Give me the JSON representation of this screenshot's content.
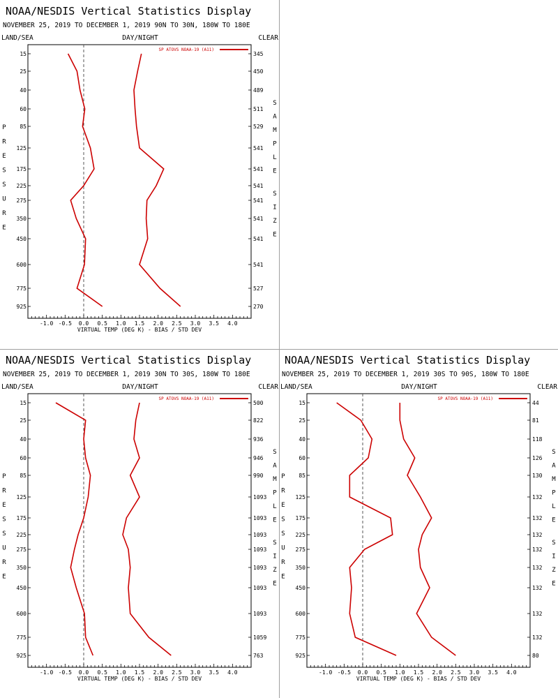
{
  "chart_data": [
    {
      "type": "line",
      "title": "NOAA/NESDIS Vertical Statistics Display",
      "subtitle": "NOVEMBER 25, 2019 TO DECEMBER 1, 2019 90N TO 30N, 180W TO 180E",
      "header_left": "LAND/SEA",
      "header_center": "DAY/NIGHT",
      "header_right": "CLEAR",
      "xlabel": "VIRTUAL TEMP (DEG K) - BIAS / STD DEV",
      "left_axis_label": "PRESSURE",
      "right_axis_label": "SAMPLE SIZE",
      "xlim": [
        -1.5,
        4.5
      ],
      "xticks": [
        "-1.0",
        "-0.5",
        "0.0",
        "0.5",
        "1.0",
        "1.5",
        "2.0",
        "2.5",
        "3.0",
        "3.5",
        "4.0"
      ],
      "pressure_levels": [
        "15",
        "25",
        "40",
        "60",
        "85",
        "125",
        "175",
        "225",
        "275",
        "350",
        "450",
        "600",
        "775",
        "925"
      ],
      "sample_size": [
        "345",
        "450",
        "489",
        "511",
        "529",
        "541",
        "541",
        "541",
        "541",
        "541",
        "541",
        "541",
        "527",
        "270"
      ],
      "series": [
        {
          "name": "SP ATOVS NOAA-19 (A11)",
          "role": "bias",
          "color": "#cc0000",
          "values": [
            -0.42,
            -0.18,
            -0.1,
            0.03,
            -0.03,
            0.18,
            0.28,
            0.0,
            -0.35,
            -0.2,
            0.05,
            0.02,
            -0.18,
            0.5
          ]
        },
        {
          "role": "std_dev",
          "color": "#cc0000",
          "values": [
            1.55,
            1.45,
            1.35,
            1.38,
            1.42,
            1.5,
            2.15,
            1.95,
            1.7,
            1.68,
            1.72,
            1.5,
            2.05,
            2.6
          ]
        }
      ]
    },
    {
      "type": "line",
      "title": "NOAA/NESDIS Vertical Statistics Display",
      "subtitle": "NOVEMBER 25, 2019 TO DECEMBER 1, 2019 30N TO 30S, 180W TO 180E",
      "header_left": "LAND/SEA",
      "header_center": "DAY/NIGHT",
      "header_right": "CLEAR",
      "xlabel": "VIRTUAL TEMP (DEG K) - BIAS / STD DEV",
      "left_axis_label": "PRESSURE",
      "right_axis_label": "SAMPLE SIZE",
      "xlim": [
        -1.5,
        4.5
      ],
      "xticks": [
        "-1.0",
        "-0.5",
        "0.0",
        "0.5",
        "1.0",
        "1.5",
        "2.0",
        "2.5",
        "3.0",
        "3.5",
        "4.0"
      ],
      "pressure_levels": [
        "15",
        "25",
        "40",
        "60",
        "85",
        "125",
        "175",
        "225",
        "275",
        "350",
        "450",
        "600",
        "775",
        "925"
      ],
      "sample_size": [
        "500",
        "822",
        "936",
        "946",
        "990",
        "1093",
        "1093",
        "1093",
        "1093",
        "1093",
        "1093",
        "1093",
        "1059",
        "763"
      ],
      "series": [
        {
          "name": "SP ATOVS NOAA-19 (A11)",
          "role": "bias",
          "color": "#cc0000",
          "values": [
            -0.75,
            0.05,
            0.0,
            0.05,
            0.18,
            0.12,
            0.0,
            -0.15,
            -0.25,
            -0.35,
            -0.2,
            0.02,
            0.05,
            0.25
          ]
        },
        {
          "role": "std_dev",
          "color": "#cc0000",
          "values": [
            1.5,
            1.4,
            1.35,
            1.5,
            1.25,
            1.5,
            1.15,
            1.05,
            1.2,
            1.25,
            1.2,
            1.25,
            1.75,
            2.35
          ]
        }
      ]
    },
    {
      "type": "line",
      "title": "NOAA/NESDIS Vertical Statistics Display",
      "subtitle": "NOVEMBER 25, 2019 TO DECEMBER 1, 2019 30S TO 90S, 180W TO 180E",
      "header_left": "LAND/SEA",
      "header_center": "DAY/NIGHT",
      "header_right": "CLEAR",
      "xlabel": "VIRTUAL TEMP (DEG K) - BIAS / STD DEV",
      "left_axis_label": "PRESSURE",
      "right_axis_label": "SAMPLE SIZE",
      "xlim": [
        -1.5,
        4.5
      ],
      "xticks": [
        "-1.0",
        "-0.5",
        "0.0",
        "0.5",
        "1.0",
        "1.5",
        "2.0",
        "2.5",
        "3.0",
        "3.5",
        "4.0"
      ],
      "pressure_levels": [
        "15",
        "25",
        "40",
        "60",
        "85",
        "125",
        "175",
        "225",
        "275",
        "350",
        "450",
        "600",
        "775",
        "925"
      ],
      "sample_size": [
        "44",
        "81",
        "118",
        "126",
        "130",
        "132",
        "132",
        "132",
        "132",
        "132",
        "132",
        "132",
        "132",
        "80"
      ],
      "series": [
        {
          "name": "SP ATOVS NOAA-19 (A11)",
          "role": "bias",
          "color": "#cc0000",
          "values": [
            -0.7,
            -0.05,
            0.25,
            0.15,
            -0.35,
            -0.35,
            0.75,
            0.8,
            0.05,
            -0.35,
            -0.3,
            -0.35,
            -0.2,
            0.9
          ]
        },
        {
          "role": "std_dev",
          "color": "#cc0000",
          "values": [
            1.0,
            1.0,
            1.1,
            1.4,
            1.2,
            1.55,
            1.85,
            1.6,
            1.5,
            1.55,
            1.8,
            1.45,
            1.85,
            2.5
          ]
        }
      ]
    }
  ]
}
